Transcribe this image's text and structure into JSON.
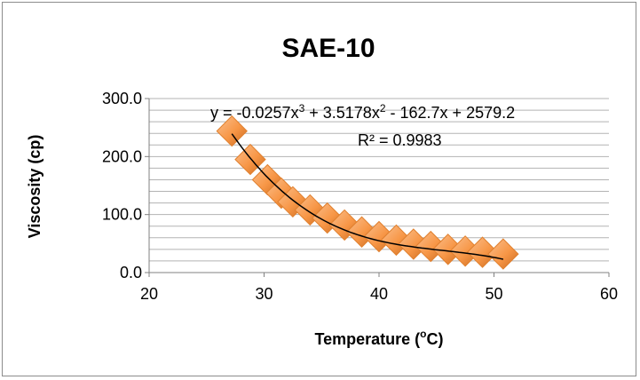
{
  "chart_data": {
    "type": "scatter",
    "title": "SAE-10",
    "xlabel": "Temperature (",
    "xlabel_sup": "o",
    "xlabel_end": "C)",
    "ylabel": "Viscosity (cp)",
    "xlim": [
      20,
      60
    ],
    "ylim": [
      0,
      300
    ],
    "x_ticks": [
      "20",
      "30",
      "40",
      "50",
      "60"
    ],
    "y_ticks": [
      "0.0",
      "100.0",
      "200.0",
      "300.0"
    ],
    "grid": true,
    "legend": "none",
    "marker_color": "#f79646",
    "trendline": {
      "type": "polynomial",
      "order": 3,
      "coefficients": [
        -0.0257,
        3.5178,
        -162.7,
        2579.2
      ],
      "color": "#000000",
      "equation_parts": [
        "y = -0.0257x",
        "3",
        " + 3.5178x",
        "2",
        " - 162.7x + 2579.2"
      ],
      "r_squared_label": "R² = 0.9983"
    },
    "series": [
      {
        "points": [
          {
            "x": 27.2,
            "y": 244
          },
          {
            "x": 28.8,
            "y": 195
          },
          {
            "x": 30.3,
            "y": 160
          },
          {
            "x": 31.5,
            "y": 137
          },
          {
            "x": 32.5,
            "y": 122
          },
          {
            "x": 34.0,
            "y": 108
          },
          {
            "x": 35.5,
            "y": 94
          },
          {
            "x": 37.0,
            "y": 82
          },
          {
            "x": 38.5,
            "y": 70
          },
          {
            "x": 40.0,
            "y": 62
          },
          {
            "x": 41.5,
            "y": 56
          },
          {
            "x": 43.0,
            "y": 49
          },
          {
            "x": 44.5,
            "y": 45
          },
          {
            "x": 46.0,
            "y": 40
          },
          {
            "x": 47.5,
            "y": 37
          },
          {
            "x": 49.0,
            "y": 35
          },
          {
            "x": 50.8,
            "y": 32
          }
        ]
      }
    ]
  }
}
